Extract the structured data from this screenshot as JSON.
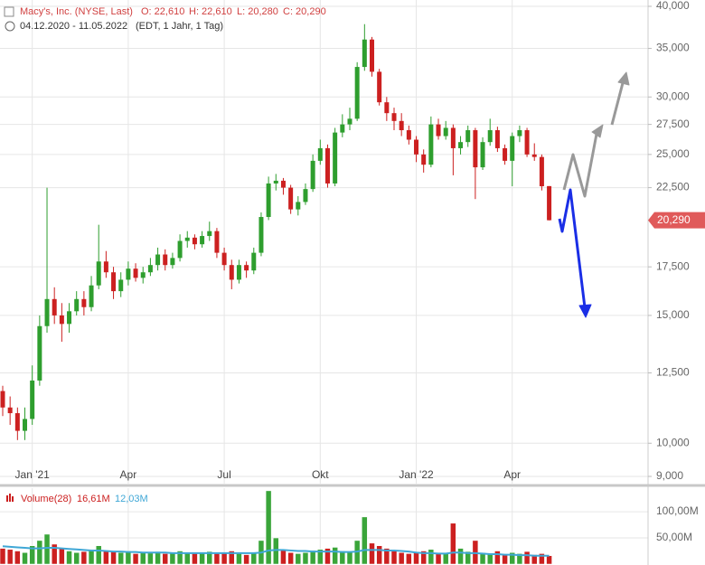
{
  "header": {
    "title": "Macy's, Inc. (NYSE, Last)",
    "ohlc": [
      "O: 22,610",
      "H: 22,610",
      "L: 20,280",
      "C: 20,290"
    ],
    "range": "04.12.2020 - 11.05.2022",
    "info": "(EDT, 1 Jahr, 1 Tag)"
  },
  "chart_data": {
    "type": "candlestick",
    "log_scale": true,
    "grid": true,
    "up_color": "#2e9e2e",
    "down_color": "#cc2020",
    "volume_color_up": "#3aa53a",
    "volume_color_down": "#cc2020",
    "volume_ma_color": "#3fa7d6",
    "categories": [
      null,
      null,
      null,
      null,
      "Jan '21",
      null,
      null,
      null,
      null,
      null,
      null,
      null,
      null,
      null,
      null,
      null,
      null,
      "Apr",
      null,
      null,
      null,
      null,
      null,
      null,
      null,
      null,
      null,
      null,
      null,
      null,
      "Jul",
      null,
      null,
      null,
      null,
      null,
      null,
      null,
      null,
      null,
      null,
      null,
      null,
      "Okt",
      null,
      null,
      null,
      null,
      null,
      null,
      null,
      null,
      null,
      null,
      null,
      null,
      "Jan '22",
      null,
      null,
      null,
      null,
      null,
      null,
      null,
      null,
      null,
      null,
      null,
      null,
      "Apr",
      null,
      null,
      null,
      null,
      null
    ],
    "open": [
      11.8,
      11.2,
      11.0,
      10.4,
      10.8,
      12.2,
      14.5,
      15.8,
      15.0,
      14.6,
      15.2,
      15.8,
      15.4,
      16.5,
      17.8,
      17.2,
      16.2,
      16.8,
      17.4,
      16.9,
      17.2,
      17.6,
      18.2,
      17.6,
      18.0,
      19.0,
      19.2,
      18.8,
      19.3,
      19.6,
      18.3,
      17.6,
      16.8,
      17.6,
      17.3,
      18.3,
      20.5,
      22.8,
      23.0,
      22.5,
      21.0,
      21.5,
      22.4,
      24.5,
      25.5,
      22.8,
      26.8,
      27.5,
      28.0,
      33.0,
      36.0,
      32.5,
      29.5,
      28.5,
      27.8,
      27.0,
      26.2,
      25.0,
      24.2,
      27.5,
      26.5,
      27.2,
      25.5,
      26.0,
      27.0,
      24.0,
      26.0,
      27.0,
      25.5,
      24.5,
      26.5,
      27.0,
      25.0,
      24.8,
      22.61
    ],
    "high": [
      12.0,
      11.6,
      11.2,
      11.2,
      12.8,
      15.0,
      22.5,
      16.4,
      15.6,
      15.6,
      16.2,
      16.2,
      17.0,
      20.0,
      18.4,
      17.5,
      17.2,
      17.8,
      17.7,
      17.5,
      18.0,
      18.6,
      18.5,
      18.3,
      19.4,
      19.6,
      19.4,
      19.6,
      20.2,
      19.8,
      18.6,
      17.9,
      17.9,
      17.8,
      18.6,
      20.8,
      23.3,
      23.5,
      23.2,
      22.7,
      21.9,
      22.8,
      25.0,
      26.2,
      25.8,
      27.2,
      28.4,
      29.0,
      33.5,
      37.8,
      36.3,
      32.8,
      30.0,
      29.0,
      28.5,
      27.4,
      26.5,
      25.4,
      28.2,
      28.0,
      27.8,
      27.5,
      26.5,
      27.4,
      27.2,
      26.4,
      28.0,
      27.3,
      25.8,
      26.8,
      27.4,
      27.2,
      25.9,
      25.0,
      22.61
    ],
    "low": [
      10.9,
      10.6,
      10.1,
      10.1,
      10.6,
      12.0,
      14.2,
      14.6,
      13.8,
      14.2,
      15.0,
      15.0,
      15.2,
      16.3,
      16.9,
      15.8,
      15.9,
      16.5,
      16.7,
      16.6,
      17.0,
      17.3,
      17.3,
      17.4,
      17.8,
      18.6,
      18.5,
      18.6,
      19.0,
      18.0,
      17.3,
      16.3,
      16.6,
      16.9,
      17.1,
      18.1,
      20.3,
      22.3,
      22.0,
      20.7,
      20.6,
      21.3,
      22.2,
      24.2,
      22.5,
      22.6,
      26.4,
      27.0,
      27.8,
      32.6,
      32.0,
      29.2,
      27.8,
      27.0,
      26.5,
      25.8,
      24.4,
      23.6,
      24.0,
      26.2,
      26.2,
      23.4,
      25.0,
      25.6,
      21.7,
      23.8,
      25.7,
      25.2,
      24.2,
      22.6,
      26.0,
      24.8,
      24.5,
      22.3,
      20.28
    ],
    "close": [
      11.2,
      11.0,
      10.4,
      10.8,
      12.2,
      14.5,
      15.8,
      15.0,
      14.6,
      15.2,
      15.8,
      15.4,
      16.5,
      17.8,
      17.2,
      16.2,
      16.8,
      17.4,
      16.9,
      17.2,
      17.6,
      18.2,
      17.6,
      18.0,
      19.0,
      19.2,
      18.8,
      19.3,
      19.6,
      18.3,
      17.6,
      16.8,
      17.6,
      17.3,
      18.3,
      20.5,
      22.8,
      23.0,
      22.5,
      21.0,
      21.5,
      22.4,
      24.5,
      25.5,
      22.8,
      26.8,
      27.5,
      28.0,
      33.0,
      36.0,
      32.5,
      29.5,
      28.5,
      27.8,
      27.0,
      26.2,
      25.0,
      24.2,
      27.5,
      26.5,
      27.2,
      25.5,
      26.0,
      27.0,
      24.0,
      26.0,
      27.0,
      25.5,
      24.5,
      26.5,
      27.0,
      25.0,
      24.8,
      22.6,
      20.29
    ],
    "ylim": [
      9,
      40
    ],
    "yticks": [
      {
        "value": 9,
        "label": "9,000"
      },
      {
        "value": 10,
        "label": "10,000"
      },
      {
        "value": 12.5,
        "label": "12,500"
      },
      {
        "value": 15,
        "label": "15,000"
      },
      {
        "value": 17.5,
        "label": "17,500"
      },
      {
        "value": 22.5,
        "label": "22,500"
      },
      {
        "value": 25,
        "label": "25,000"
      },
      {
        "value": 27.5,
        "label": "27,500"
      },
      {
        "value": 30,
        "label": "30,000"
      },
      {
        "value": 35,
        "label": "35,000"
      },
      {
        "value": 40,
        "label": "40,000"
      }
    ],
    "last_label": "20,290",
    "volume_title": "Volume(28)",
    "volume_labels": [
      "16,61M",
      "12,03M"
    ],
    "volume": [
      30,
      28,
      25,
      22,
      35,
      45,
      57,
      38,
      30,
      25,
      22,
      24,
      28,
      35,
      26,
      24,
      22,
      25,
      20,
      22,
      21,
      24,
      20,
      22,
      25,
      22,
      20,
      21,
      24,
      20,
      22,
      25,
      20,
      18,
      22,
      45,
      140,
      50,
      28,
      22,
      20,
      22,
      26,
      28,
      30,
      32,
      25,
      24,
      45,
      90,
      40,
      35,
      30,
      25,
      22,
      20,
      22,
      25,
      28,
      22,
      20,
      78,
      30,
      24,
      45,
      22,
      20,
      25,
      18,
      22,
      20,
      24,
      18,
      20,
      16
    ],
    "volume_ma": [
      34,
      33,
      32,
      31,
      30,
      30,
      31,
      31,
      30,
      29,
      28,
      27,
      26,
      26,
      25,
      24,
      24,
      23,
      23,
      22,
      22,
      22,
      22,
      21,
      21,
      21,
      21,
      21,
      21,
      21,
      21,
      21,
      21,
      21,
      21,
      22,
      26,
      27,
      27,
      26,
      25,
      25,
      24,
      24,
      24,
      24,
      23,
      23,
      24,
      27,
      27,
      27,
      26,
      26,
      25,
      24,
      22,
      21,
      21,
      20,
      20,
      22,
      22,
      21,
      21,
      20,
      19,
      19,
      18,
      18,
      17,
      17,
      16,
      16,
      16
    ],
    "vlim": [
      0,
      145
    ],
    "vticks": [
      {
        "value": 50,
        "label": "50,00M"
      },
      {
        "value": 100,
        "label": "100,00M"
      }
    ]
  }
}
